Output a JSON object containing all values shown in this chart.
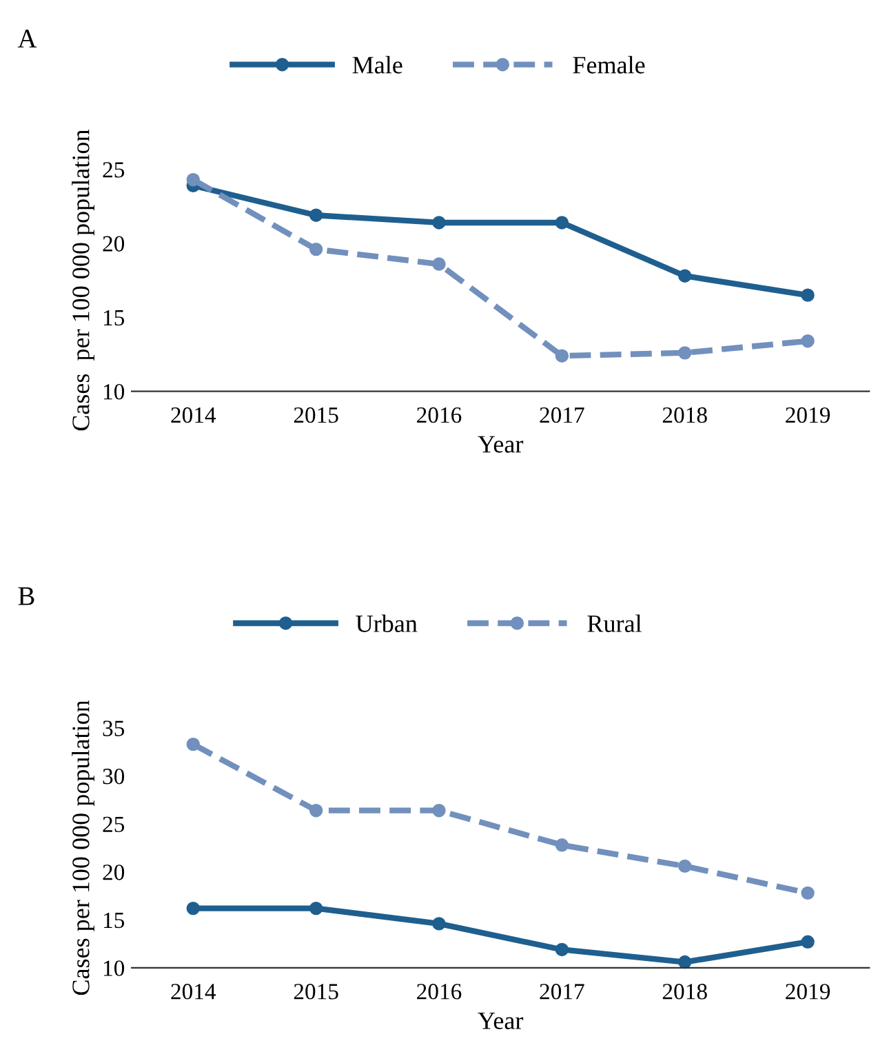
{
  "chart_data": [
    {
      "type": "line",
      "title": "A",
      "xlabel": "Year",
      "ylabel": "Cases  per 100 000 population",
      "categories": [
        "2014",
        "2015",
        "2016",
        "2017",
        "2018",
        "2019"
      ],
      "ylim": [
        10,
        25
      ],
      "yticks": [
        10,
        15,
        20,
        25
      ],
      "legend": "top",
      "marker": "circle",
      "grid": false,
      "series": [
        {
          "name": "Male",
          "color": "#1f5f8f",
          "line_style": "solid",
          "values": [
            23.9,
            21.9,
            21.4,
            21.4,
            17.8,
            16.5
          ]
        },
        {
          "name": "Female",
          "color": "#7290bd",
          "line_style": "dashed",
          "values": [
            24.3,
            19.6,
            18.6,
            12.4,
            12.6,
            13.4
          ]
        }
      ]
    },
    {
      "type": "line",
      "title": "B",
      "xlabel": "Year",
      "ylabel": "Cases per 100 000 population",
      "categories": [
        "2014",
        "2015",
        "2016",
        "2017",
        "2018",
        "2019"
      ],
      "ylim": [
        10,
        35
      ],
      "yticks": [
        10,
        15,
        20,
        25,
        30,
        35
      ],
      "legend": "top",
      "marker": "circle",
      "grid": false,
      "series": [
        {
          "name": "Urban",
          "color": "#1f5f8f",
          "line_style": "solid",
          "values": [
            16.2,
            16.2,
            14.6,
            11.9,
            10.6,
            12.7
          ]
        },
        {
          "name": "Rural",
          "color": "#7290bd",
          "line_style": "dashed",
          "values": [
            33.3,
            26.4,
            26.4,
            22.8,
            20.6,
            17.8
          ]
        }
      ]
    }
  ]
}
